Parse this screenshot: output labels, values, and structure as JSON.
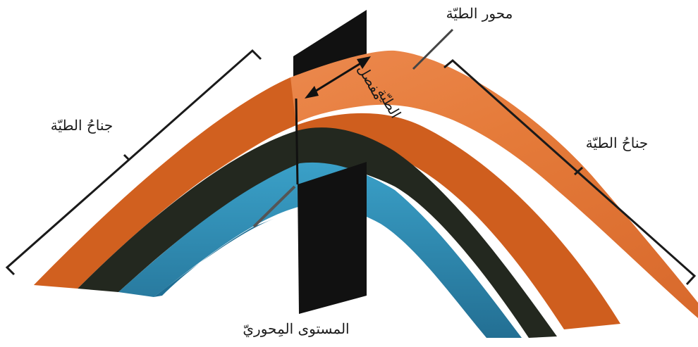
{
  "labels": {
    "fold_axis": "محور الطيّة",
    "fold_hinge_line1": "مفصل",
    "fold_hinge_line2": "الطيّة",
    "left_limb": "جناحُ الطيّة",
    "right_limb": "جناحُ الطيّة",
    "axial_plane": "المستوى المِحوريّ"
  },
  "colors": {
    "background": "#ffffff",
    "top_layer_surface": "#e57b3a",
    "top_layer_front": "#d1601f",
    "dark_layer": "#23281f",
    "blue_layer": "#2c8fb8",
    "blue_layer_side": "#1f6f95",
    "axial_plane": "#111111",
    "bracket": "#1a1a1a"
  }
}
